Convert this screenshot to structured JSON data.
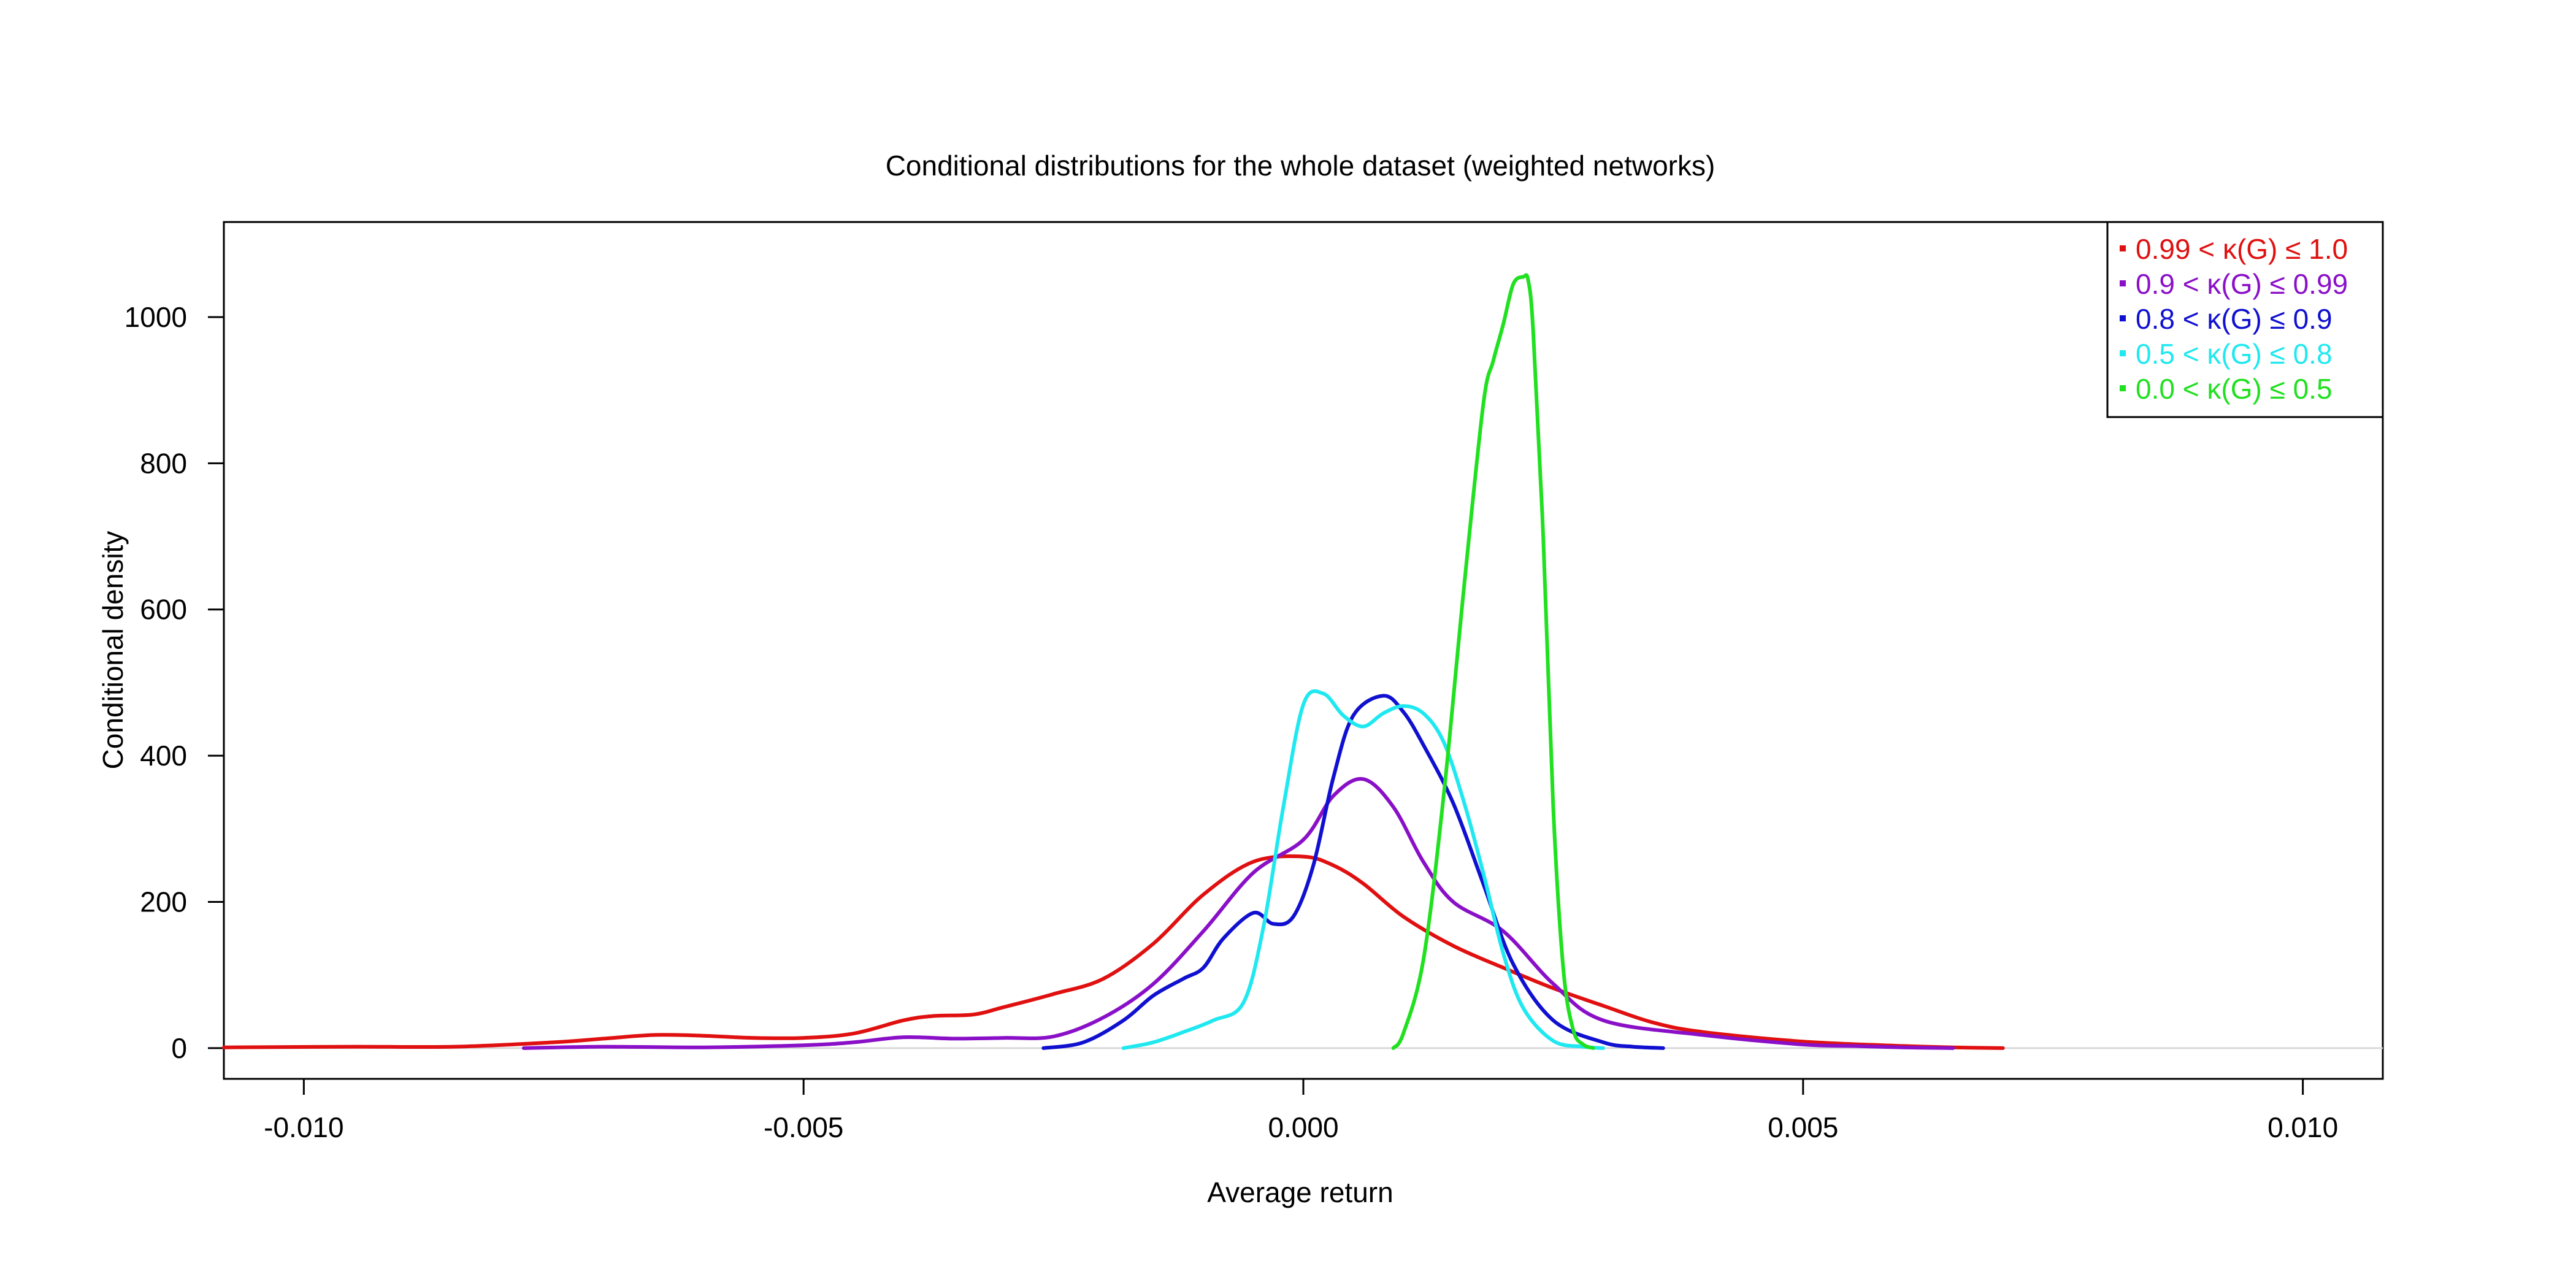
{
  "chart_data": {
    "type": "line",
    "title": "Conditional distributions for the whole dataset (weighted networks)",
    "xlabel": "Average return",
    "ylabel": "Conditional density",
    "xlim": [
      -0.0108,
      0.0108
    ],
    "ylim": [
      -42,
      1130
    ],
    "x_ticks": [
      -0.01,
      -0.005,
      0.0,
      0.005,
      0.01
    ],
    "x_tick_labels": [
      "-0.010",
      "-0.005",
      "0.000",
      "0.005",
      "0.010"
    ],
    "y_ticks": [
      0,
      200,
      400,
      600,
      800,
      1000
    ],
    "y_tick_labels": [
      "0",
      "200",
      "400",
      "600",
      "800",
      "1000"
    ],
    "legend_position": "top-right",
    "baseline_color": "#d9d9d9",
    "series": [
      {
        "name": "0.99 < κ(G) ≤ 1.0",
        "color": "#e01010",
        "x": [
          -0.0108,
          -0.0095,
          -0.0085,
          -0.0075,
          -0.007,
          -0.0065,
          -0.006,
          -0.0055,
          -0.005,
          -0.0045,
          -0.004,
          -0.0037,
          -0.0033,
          -0.003,
          -0.0025,
          -0.002,
          -0.0015,
          -0.001,
          -0.0005,
          0.0,
          0.0003,
          0.0006,
          0.001,
          0.0015,
          0.002,
          0.0025,
          0.003,
          0.0035,
          0.004,
          0.005,
          0.006,
          0.0065,
          0.007
        ],
        "y": [
          1,
          2,
          2,
          8,
          13,
          18,
          17,
          14,
          14,
          20,
          38,
          44,
          46,
          56,
          74,
          95,
          143,
          210,
          255,
          262,
          250,
          225,
          180,
          140,
          110,
          82,
          58,
          35,
          22,
          9,
          3,
          1,
          0
        ]
      },
      {
        "name": "0.9 < κ(G) ≤ 0.99",
        "color": "#8a10c8",
        "x": [
          -0.0078,
          -0.007,
          -0.006,
          -0.005,
          -0.0045,
          -0.004,
          -0.0035,
          -0.003,
          -0.0025,
          -0.002,
          -0.0015,
          -0.001,
          -0.0005,
          0.0,
          0.0003,
          0.0006,
          0.0009,
          0.0012,
          0.0015,
          0.002,
          0.0025,
          0.003,
          0.004,
          0.005,
          0.0055,
          0.006,
          0.0065
        ],
        "y": [
          0,
          2,
          1,
          4,
          8,
          15,
          13,
          14,
          16,
          42,
          88,
          160,
          240,
          285,
          345,
          368,
          330,
          255,
          200,
          160,
          88,
          38,
          18,
          5,
          3,
          1,
          0
        ]
      },
      {
        "name": "0.8 < κ(G) ≤ 0.9",
        "color": "#1010d0",
        "x": [
          -0.0026,
          -0.0022,
          -0.0018,
          -0.0015,
          -0.0012,
          -0.001,
          -0.0008,
          -0.0005,
          -0.0003,
          -0.0001,
          0.0001,
          0.0003,
          0.0005,
          0.0008,
          0.001,
          0.0012,
          0.0015,
          0.0018,
          0.0021,
          0.0025,
          0.003,
          0.0033,
          0.0036
        ],
        "y": [
          0,
          8,
          38,
          72,
          95,
          110,
          150,
          185,
          170,
          180,
          250,
          370,
          455,
          482,
          460,
          415,
          335,
          225,
          115,
          38,
          8,
          2,
          0
        ]
      },
      {
        "name": "0.5 < κ(G) ≤ 0.8",
        "color": "#20e8f0",
        "x": [
          -0.0018,
          -0.0015,
          -0.0012,
          -0.0009,
          -0.0006,
          -0.0004,
          -0.0002,
          0.0,
          0.0002,
          0.0004,
          0.0006,
          0.0008,
          0.001,
          0.0012,
          0.0014,
          0.0016,
          0.0018,
          0.002,
          0.0022,
          0.0025,
          0.0028,
          0.003
        ],
        "y": [
          0,
          8,
          22,
          38,
          62,
          165,
          330,
          470,
          485,
          455,
          440,
          458,
          468,
          458,
          420,
          340,
          240,
          130,
          55,
          10,
          2,
          0
        ]
      },
      {
        "name": "0.0 < κ(G) ≤ 0.5",
        "color": "#20e020",
        "x": [
          0.0009,
          0.001,
          0.0012,
          0.0014,
          0.0016,
          0.0018,
          0.0019,
          0.002,
          0.0021,
          0.0022,
          0.00225,
          0.0023,
          0.0024,
          0.0025,
          0.0026,
          0.0027,
          0.0028,
          0.0029
        ],
        "y": [
          0,
          20,
          120,
          340,
          620,
          880,
          940,
          990,
          1045,
          1055,
          1050,
          980,
          700,
          330,
          110,
          25,
          5,
          0
        ]
      }
    ]
  }
}
